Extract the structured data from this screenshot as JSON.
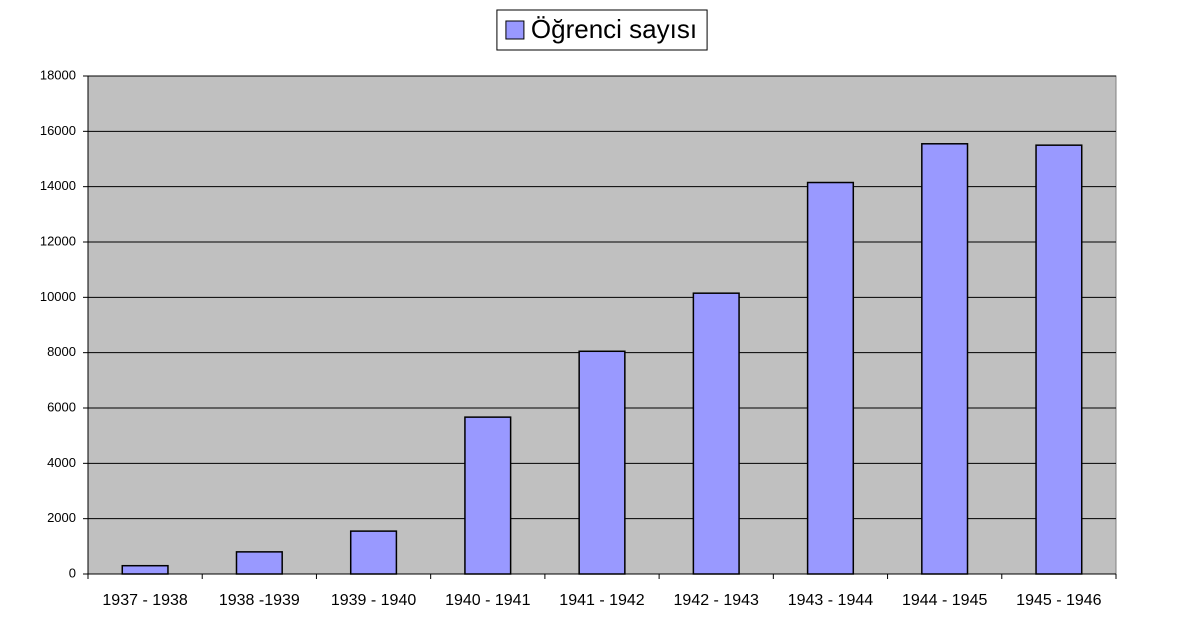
{
  "chart_data": {
    "type": "bar",
    "categories": [
      "1937 - 1938",
      "1938 -1939",
      "1939 - 1940",
      "1940 - 1941",
      "1941 - 1942",
      "1942 - 1943",
      "1943 - 1944",
      "1944 - 1945",
      "1945 - 1946"
    ],
    "series": [
      {
        "name": "Öğrenci sayısı",
        "color": "#9999ff",
        "values": [
          300,
          800,
          1550,
          5670,
          8050,
          10150,
          14150,
          15550,
          15500
        ]
      }
    ],
    "ylim": [
      0,
      18000
    ],
    "yticks": [
      0,
      2000,
      4000,
      6000,
      8000,
      10000,
      12000,
      14000,
      16000,
      18000
    ],
    "grid": true,
    "legend": "top"
  }
}
